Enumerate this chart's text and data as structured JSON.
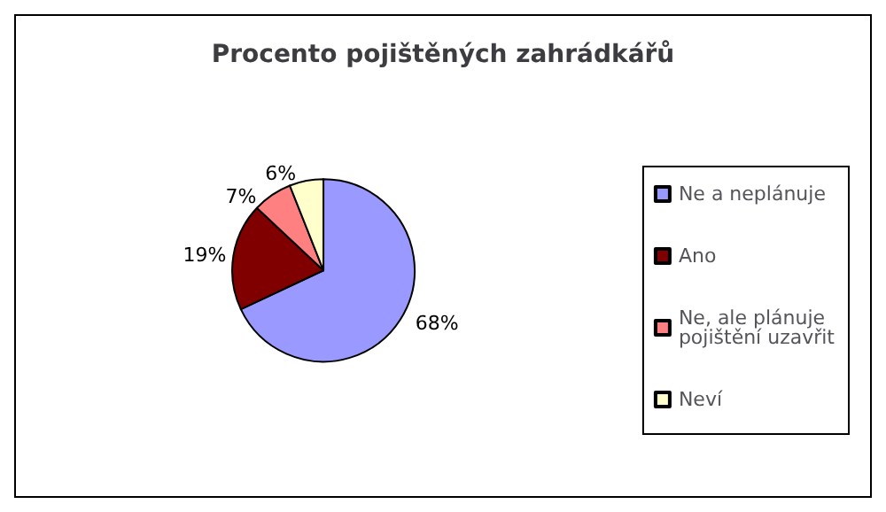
{
  "chart_data": {
    "type": "pie",
    "title": "Procento pojištěných zahrádkářů",
    "categories": [
      "Ne a neplánuje",
      "Ano",
      "Ne, ale plánuje pojištění uzavřit",
      "Neví"
    ],
    "values": [
      68,
      19,
      7,
      6
    ],
    "colors": [
      "#9999ff",
      "#800000",
      "#ff8080",
      "#ffffcc"
    ],
    "value_labels": [
      "68%",
      "19%",
      "7%",
      "6%"
    ],
    "legend": "right"
  }
}
